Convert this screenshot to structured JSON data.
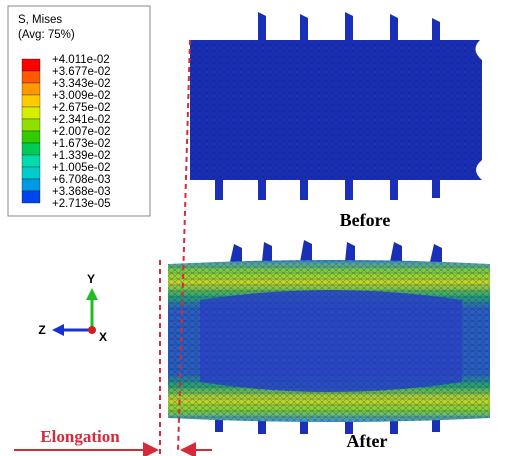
{
  "legend": {
    "title": "S, Mises",
    "subtitle": "(Avg: 75%)",
    "labels": [
      "+4.011e-02",
      "+3.677e-02",
      "+3.343e-02",
      "+3.009e-02",
      "+2.675e-02",
      "+2.341e-02",
      "+2.007e-02",
      "+1.673e-02",
      "+1.339e-02",
      "+1.005e-02",
      "+6.708e-03",
      "+3.368e-03",
      "+2.713e-05"
    ]
  },
  "captions": {
    "before": "Before",
    "after": "After",
    "elongation": "Elongation"
  },
  "axes": {
    "y": "Y",
    "z": "Z",
    "x": "X"
  }
}
